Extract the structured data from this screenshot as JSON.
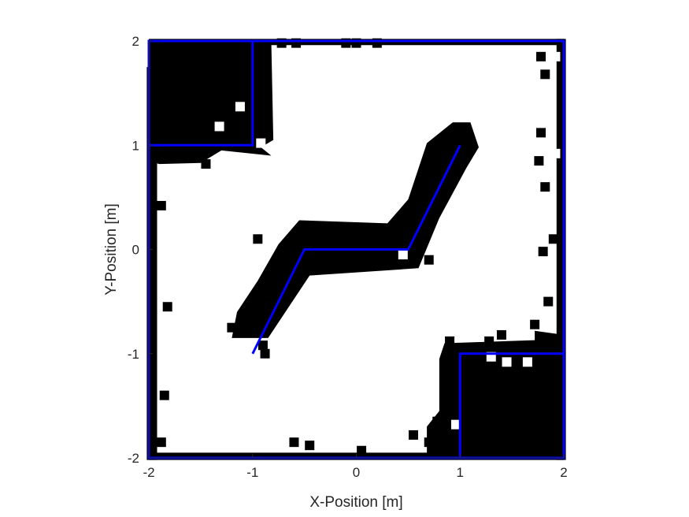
{
  "chart_data": {
    "type": "occupancy-map",
    "xlabel": "X-Position [m]",
    "ylabel": "Y-Position [m]",
    "xlim": [
      -2,
      2
    ],
    "ylim": [
      -2,
      2
    ],
    "xticks": [
      -2,
      -1,
      0,
      1,
      2
    ],
    "yticks": [
      -2,
      -1,
      0,
      1,
      2
    ],
    "xtick_labels": [
      "-2",
      "-1",
      "0",
      "1",
      "2"
    ],
    "ytick_labels": [
      "-2",
      "-1",
      "0",
      "1",
      "2"
    ],
    "grid": false,
    "colors": {
      "occupied": "#000000",
      "free": "#ffffff",
      "walls": "#0000ff",
      "axes": "#262626"
    },
    "obstacles": [
      {
        "name": "upper-left-block",
        "polyline": [
          [
            -2,
            2
          ],
          [
            -1,
            2
          ],
          [
            -1,
            1
          ],
          [
            -2,
            1
          ],
          [
            -2,
            2
          ]
        ]
      },
      {
        "name": "lower-right-block",
        "polyline": [
          [
            1,
            -2
          ],
          [
            2,
            -2
          ],
          [
            2,
            -1
          ],
          [
            1,
            -1
          ],
          [
            1,
            -2
          ]
        ]
      },
      {
        "name": "center-s-wall",
        "polyline": [
          [
            -1,
            -1
          ],
          [
            -0.5,
            0
          ],
          [
            0.5,
            0
          ],
          [
            1,
            1
          ]
        ]
      }
    ],
    "occupied_regions": [
      {
        "name": "left-edge",
        "poly": [
          [
            -2.02,
            1.75
          ],
          [
            -1.92,
            1.75
          ],
          [
            -1.92,
            -2.02
          ],
          [
            -2.02,
            -2.02
          ]
        ]
      },
      {
        "name": "right-edge",
        "poly": [
          [
            1.93,
            2.02
          ],
          [
            2.02,
            2.02
          ],
          [
            2.02,
            -2.02
          ],
          [
            1.93,
            -2.02
          ]
        ]
      },
      {
        "name": "top-edge",
        "poly": [
          [
            -2.0,
            2.02
          ],
          [
            2.0,
            2.02
          ],
          [
            2.0,
            1.96
          ],
          [
            -2.0,
            1.96
          ]
        ]
      },
      {
        "name": "bottom-edge",
        "poly": [
          [
            -2.0,
            -1.95
          ],
          [
            2.0,
            -1.95
          ],
          [
            2.0,
            -2.02
          ],
          [
            -2.0,
            -2.02
          ]
        ]
      },
      {
        "name": "upper-left-blob",
        "poly": [
          [
            -2.0,
            2.0
          ],
          [
            -0.82,
            2.0
          ],
          [
            -0.8,
            1.05
          ],
          [
            -0.92,
            0.98
          ],
          [
            -0.82,
            0.9
          ],
          [
            -1.3,
            0.95
          ],
          [
            -1.5,
            0.83
          ],
          [
            -1.9,
            0.82
          ],
          [
            -2.0,
            0.85
          ]
        ]
      },
      {
        "name": "lower-right-blob",
        "poly": [
          [
            0.85,
            -0.9
          ],
          [
            1.72,
            -0.87
          ],
          [
            1.72,
            -0.78
          ],
          [
            2.0,
            -0.82
          ],
          [
            2.0,
            -2.0
          ],
          [
            0.68,
            -2.0
          ],
          [
            0.68,
            -1.7
          ],
          [
            0.8,
            -1.55
          ],
          [
            0.8,
            -1.05
          ]
        ]
      },
      {
        "name": "center-s-band",
        "poly": [
          [
            -1.2,
            -0.85
          ],
          [
            -0.85,
            -0.85
          ],
          [
            -0.45,
            -0.25
          ],
          [
            0.6,
            -0.18
          ],
          [
            0.8,
            0.3
          ],
          [
            1.06,
            0.78
          ],
          [
            1.18,
            0.98
          ],
          [
            1.1,
            1.22
          ],
          [
            0.93,
            1.22
          ],
          [
            0.68,
            1.02
          ],
          [
            0.5,
            0.48
          ],
          [
            0.3,
            0.25
          ],
          [
            -0.55,
            0.28
          ],
          [
            -0.75,
            0.05
          ],
          [
            -0.95,
            -0.3
          ],
          [
            -1.15,
            -0.6
          ]
        ]
      }
    ],
    "noise_cells": [
      [
        -0.72,
        1.98
      ],
      [
        -0.58,
        1.98
      ],
      [
        -0.1,
        1.98
      ],
      [
        0.0,
        1.98
      ],
      [
        0.2,
        1.98
      ],
      [
        1.78,
        1.85
      ],
      [
        1.82,
        1.68
      ],
      [
        1.78,
        1.12
      ],
      [
        1.76,
        0.85
      ],
      [
        1.82,
        0.6
      ],
      [
        1.9,
        0.1
      ],
      [
        1.8,
        -0.02
      ],
      [
        1.85,
        -0.5
      ],
      [
        1.72,
        -0.72
      ],
      [
        1.28,
        -0.88
      ],
      [
        1.4,
        -0.82
      ],
      [
        0.9,
        -0.88
      ],
      [
        -1.08,
        -0.72
      ],
      [
        -0.88,
        -1.0
      ],
      [
        -1.2,
        -0.75
      ],
      [
        -0.9,
        -0.92
      ],
      [
        -0.6,
        -1.85
      ],
      [
        0.7,
        -1.85
      ],
      [
        0.78,
        -1.65
      ],
      [
        0.55,
        -1.78
      ],
      [
        -0.45,
        -1.88
      ],
      [
        0.05,
        -1.93
      ],
      [
        -1.6,
        0.95
      ],
      [
        -1.45,
        0.82
      ],
      [
        -1.88,
        -1.85
      ],
      [
        -1.85,
        -1.4
      ],
      [
        -1.88,
        0.42
      ],
      [
        -1.82,
        -0.55
      ],
      [
        0.7,
        -0.1
      ],
      [
        -0.95,
        0.1
      ]
    ],
    "free_holes": [
      [
        -1.12,
        1.37
      ],
      [
        -1.32,
        1.18
      ],
      [
        -0.92,
        1.02
      ],
      [
        0.45,
        -0.05
      ],
      [
        0.96,
        -1.68
      ],
      [
        1.45,
        -1.08
      ],
      [
        1.65,
        -1.08
      ],
      [
        1.3,
        -1.03
      ],
      [
        1.92,
        1.85
      ],
      [
        1.92,
        0.92
      ]
    ]
  }
}
